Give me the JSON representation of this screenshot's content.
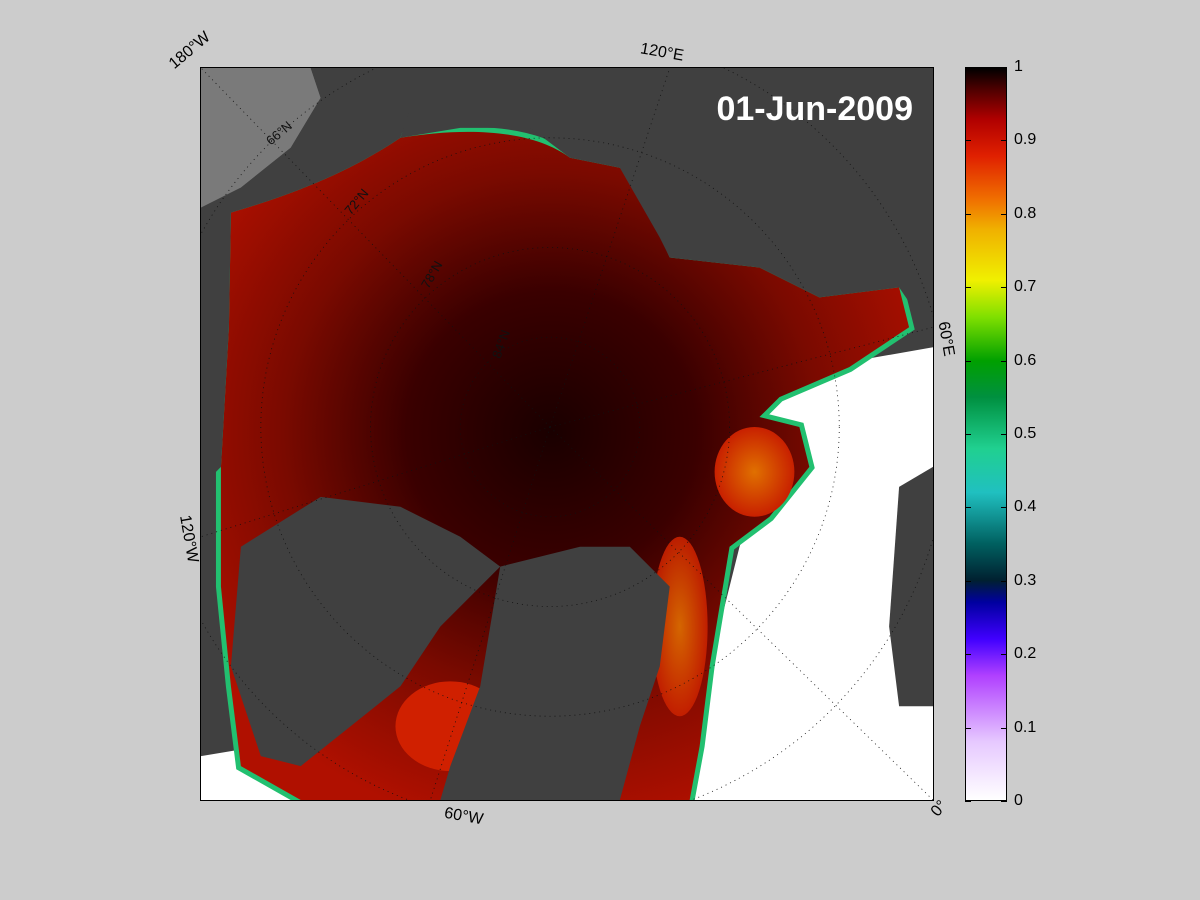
{
  "date": "01-Jun-2009",
  "longitude_labels": {
    "w180": "180°W",
    "e120": "120°E",
    "e60": "60°E",
    "w120": "120°W",
    "w60": "60°W",
    "zero": "0°"
  },
  "latitude_labels": {
    "n66": "66°N",
    "n72": "72°N",
    "n78": "78°N",
    "n84": "84°N"
  },
  "colorbar": {
    "ticks": [
      "0",
      "0.1",
      "0.2",
      "0.3",
      "0.4",
      "0.5",
      "0.6",
      "0.7",
      "0.8",
      "0.9",
      "1"
    ],
    "min": 0,
    "max": 1
  },
  "colors": {
    "background": "#cccccc",
    "land": "#404040",
    "open_water": "#ffffff",
    "ice_high": "#1a0000",
    "ice_mid": "#8b0000"
  }
}
